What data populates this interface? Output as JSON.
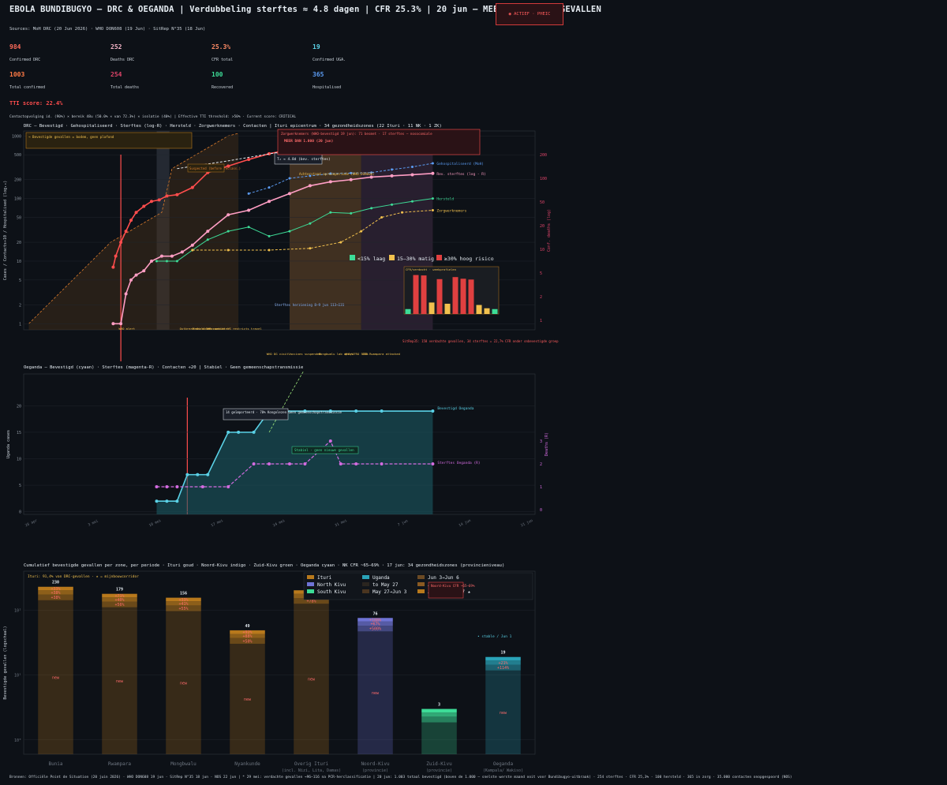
{
  "header": {
    "title": "EBOLA BUNDIBUGYO — DRC & OEGANDA  |  Verdubbeling sterftes ≈ 4.8 dagen  |  CFR 25.3%  |  20 jun — MEER DAN 1.000 GEVALLEN",
    "badge": "◉ ACTIEF · PHEIC",
    "sources": "Sources: MoH DRC (20 Jun 2026)  ·  WHO DON608 (19 Jun)  ·  SitRep N°35 (18 Jun)"
  },
  "kpis": [
    {
      "value": "984",
      "label": "Confirmed DRC",
      "color": "#ff6b5a"
    },
    {
      "value": "252",
      "label": "Deaths DRC",
      "color": "#f5b5c8"
    },
    {
      "value": "25.3%",
      "label": "CFR total",
      "color": "#ff8c66"
    },
    {
      "value": "19",
      "label": "Confirmed UGA.",
      "color": "#5ad1e6"
    },
    {
      "value": "1003",
      "label": "Total confirmed",
      "color": "#ff7a45"
    },
    {
      "value": "254",
      "label": "Total deaths",
      "color": "#e0446a"
    },
    {
      "value": "100",
      "label": "Recovered",
      "color": "#3ddc97"
    },
    {
      "value": "365",
      "label": "Hospitalised",
      "color": "#5b9bf2"
    }
  ],
  "tti": "TTI score: 22.4%",
  "contact_line": "Contactopvolging id. (90%) × bereik 48u (50.0% × van 72.3%) × isolatie (40%)  |  Effective TTI threshold: >50%  ·  Current score: CRITICAL",
  "panels": {
    "drc_head": "DRC — Bevestigd · Gehospitaliseerd · Sterftes (log-R) · Hersteld · Zorgwerknemers · Contacten  |  Ituri epicentrum · 34 gezondheidszones (22 Ituri · 11 NK · 1 ZK)",
    "uganda_head": "Oeganda — Bevestigd (cyaan) · Sterftes (magenta-R) · Contacten ÷20  |  Stabiel · Geen gemeenschapstransmissie",
    "zone_head": "Cumulatief bevestigde gevallen per zone, per periode  ·  Ituri goud · Noord-Kivu indigo · Zuid-Kivu groen · Oeganda cyaan  ·  NK CFR ~65–69%  ·  17 jun: 34 gezondheidszones (provincieniveau)"
  },
  "chart_data": [
    {
      "type": "line",
      "id": "drc",
      "ylabel": "Cases / Contacts÷10 / Hospitalised (log₁₀)",
      "y2label": "Conf. deaths (log)",
      "yscale": "log",
      "ylim": [
        0.8,
        1200
      ],
      "y_ticks": [
        1,
        2,
        5,
        10,
        20,
        50,
        100,
        200,
        500,
        1000
      ],
      "y2_ticks": [
        "1",
        "2",
        "5",
        "10",
        "20",
        "50",
        "100",
        "200"
      ],
      "series": [
        {
          "name": "Bevestigd",
          "color": "#ff4d4d",
          "values": [
            [
              0.175,
              8
            ],
            [
              0.18,
              12
            ],
            [
              0.19,
              20
            ],
            [
              0.2,
              30
            ],
            [
              0.21,
              45
            ],
            [
              0.22,
              60
            ],
            [
              0.235,
              75
            ],
            [
              0.25,
              90
            ],
            [
              0.265,
              95
            ],
            [
              0.28,
              110
            ],
            [
              0.3,
              115
            ],
            [
              0.33,
              150
            ],
            [
              0.36,
              260
            ],
            [
              0.4,
              330
            ],
            [
              0.44,
              420
            ],
            [
              0.48,
              520
            ],
            [
              0.52,
              600
            ],
            [
              0.56,
              700
            ],
            [
              0.6,
              760
            ],
            [
              0.64,
              800
            ],
            [
              0.68,
              850
            ],
            [
              0.72,
              900
            ],
            [
              0.76,
              950
            ],
            [
              0.8,
              984
            ]
          ]
        },
        {
          "name": "Rev. sterftes (log - R)",
          "color": "#ff9ec4",
          "values": [
            [
              0.175,
              1
            ],
            [
              0.19,
              1
            ],
            [
              0.2,
              3
            ],
            [
              0.21,
              5
            ],
            [
              0.22,
              6
            ],
            [
              0.235,
              7
            ],
            [
              0.25,
              10
            ],
            [
              0.27,
              12
            ],
            [
              0.29,
              12
            ],
            [
              0.31,
              14
            ],
            [
              0.33,
              18
            ],
            [
              0.36,
              30
            ],
            [
              0.4,
              55
            ],
            [
              0.44,
              65
            ],
            [
              0.48,
              90
            ],
            [
              0.52,
              120
            ],
            [
              0.56,
              160
            ],
            [
              0.6,
              185
            ],
            [
              0.64,
              200
            ],
            [
              0.68,
              220
            ],
            [
              0.72,
              230
            ],
            [
              0.76,
              240
            ],
            [
              0.8,
              252
            ]
          ]
        },
        {
          "name": "Gehospitaliseerd (MoH)",
          "color": "#5b9bf2",
          "values": [
            [
              0.44,
              120
            ],
            [
              0.48,
              150
            ],
            [
              0.52,
              210
            ],
            [
              0.56,
              230
            ],
            [
              0.6,
              250
            ],
            [
              0.64,
              255
            ],
            [
              0.68,
              260
            ],
            [
              0.72,
              290
            ],
            [
              0.76,
              320
            ],
            [
              0.8,
              365
            ]
          ]
        },
        {
          "name": "Hersteld",
          "color": "#3ddc97",
          "values": [
            [
              0.26,
              10
            ],
            [
              0.28,
              10
            ],
            [
              0.3,
              10
            ],
            [
              0.33,
              15
            ],
            [
              0.36,
              22
            ],
            [
              0.4,
              30
            ],
            [
              0.44,
              35
            ],
            [
              0.48,
              25
            ],
            [
              0.52,
              30
            ],
            [
              0.56,
              40
            ],
            [
              0.6,
              60
            ],
            [
              0.64,
              58
            ],
            [
              0.68,
              70
            ],
            [
              0.72,
              80
            ],
            [
              0.76,
              90
            ],
            [
              0.8,
              100
            ]
          ]
        },
        {
          "name": "Zorgwerknemers",
          "color": "#f2c14e",
          "values": [
            [
              0.33,
              15
            ],
            [
              0.4,
              15
            ],
            [
              0.48,
              15
            ],
            [
              0.56,
              16
            ],
            [
              0.62,
              20
            ],
            [
              0.66,
              30
            ],
            [
              0.7,
              50
            ],
            [
              0.74,
              60
            ],
            [
              0.8,
              65
            ]
          ]
        },
        {
          "name": "Contacten ÷10",
          "color": "#e6edf3",
          "values": [
            [
              0.3,
              300
            ],
            [
              0.4,
              400
            ],
            [
              0.5,
              550
            ],
            [
              0.6,
              650
            ],
            [
              0.7,
              800
            ],
            [
              0.8,
              900
            ]
          ]
        }
      ],
      "annotations": [
        "→ Bevestigde gevallen = bodem, geen plafond",
        "T₂ ≈ 4.8d (bev. sterftes)",
        "Zorgwerknemers (WHO-bevestigd 19 jun): 71 besmet · 17 sterftes — nosocomiale",
        "MEER DAN 1.000 (20 jun)",
        "Achterstand opruimperiode (WHO DON608)",
        "Sterftes herziening 8–9 jun 113→131",
        "SitRep35: 158 verdachte gevallen, 34 sterftes = 22,7% CFR onder onbevestigde groep",
        "Suspected (before reclass.)"
      ],
      "legend": [
        {
          "label": "<15% laag",
          "color": "#3ddc97"
        },
        {
          "label": "15–30% matig",
          "color": "#f2c14e"
        },
        {
          "label": "≥30% hoog risico",
          "color": "#e04040"
        }
      ],
      "event_labels": [
        "WHO alert",
        "Outbreak declared",
        "Medical evacuation",
        "IHR committee",
        "US restricts travel",
        "WHO DG visit",
        "Vaccines suspended",
        "Mongbwalu lab opens",
        "WHO/AFRO 500k",
        "CTE Rwampara attacked"
      ],
      "inset": {
        "title": "CFR/verdacht · weekprofielen",
        "values": [
          12,
          95,
          94,
          28,
          85,
          25,
          90,
          86,
          84,
          22,
          14,
          12
        ],
        "colors": [
          "#3ddc97",
          "#e04040",
          "#e04040",
          "#f2c14e",
          "#e04040",
          "#f2c14e",
          "#e04040",
          "#e04040",
          "#e04040",
          "#f2c14e",
          "#f2c14e",
          "#3ddc97"
        ]
      }
    },
    {
      "type": "line",
      "id": "uganda",
      "ylabel": "Uganda cases",
      "y2label": "Deaths (R)",
      "ylim": [
        -0.5,
        26
      ],
      "y_ticks": [
        0,
        5,
        10,
        15,
        20
      ],
      "y2_ticks": [
        0,
        1,
        2,
        3
      ],
      "x_ticks": [
        "26 apr",
        "3 mei",
        "10 mei",
        "17 mei",
        "24 mei",
        "31 mei",
        "7 jun",
        "14 jun",
        "21 jun"
      ],
      "series": [
        {
          "name": "Bevestigd Oeganda",
          "color": "#5ad1e6",
          "values": [
            [
              0.26,
              2
            ],
            [
              0.28,
              2
            ],
            [
              0.3,
              2
            ],
            [
              0.32,
              7
            ],
            [
              0.34,
              7
            ],
            [
              0.36,
              7
            ],
            [
              0.4,
              15
            ],
            [
              0.42,
              15
            ],
            [
              0.45,
              15
            ],
            [
              0.48,
              19
            ],
            [
              0.5,
              19
            ],
            [
              0.55,
              19
            ],
            [
              0.6,
              19
            ],
            [
              0.65,
              19
            ],
            [
              0.7,
              19
            ],
            [
              0.8,
              19
            ]
          ]
        },
        {
          "name": "Sterftes Oeganda (R)",
          "color": "#d36be0",
          "values": [
            [
              0.26,
              1
            ],
            [
              0.28,
              1
            ],
            [
              0.3,
              1
            ],
            [
              0.35,
              1
            ],
            [
              0.4,
              1
            ],
            [
              0.45,
              2
            ],
            [
              0.48,
              2
            ],
            [
              0.52,
              2
            ],
            [
              0.55,
              2
            ],
            [
              0.6,
              3
            ],
            [
              0.62,
              2
            ],
            [
              0.65,
              2
            ],
            [
              0.7,
              2
            ],
            [
              0.8,
              2
            ]
          ]
        }
      ],
      "annotations": [
        "14 geïmporteerd · 70% Kongolezen Geen gemeenschapstransmissie",
        "Stabiel · geen nieuwe gevallen"
      ]
    },
    {
      "type": "bar",
      "id": "zones",
      "ylabel": "Bevestigde gevallen (logschaal)",
      "yscale": "log",
      "categories": [
        "Bunia",
        "Rwampara",
        "Mongbwalu",
        "Nyankunde",
        "Overig Ituri (incl. Nizi, Lita, Damas)",
        "Noord-Kivu (provincie)",
        "Zuid-Kivu (provincie)",
        "Oeganda (Kampala/ Wakiso)"
      ],
      "totals": [
        230,
        179,
        156,
        49,
        203,
        76,
        3,
        19
      ],
      "colors": [
        "#b8791c",
        "#b8791c",
        "#b8791c",
        "#b8791c",
        "#b8791c",
        "#6f74d6",
        "#3ddc97",
        "#2aa3b8"
      ],
      "segment_labels": [
        [
          "new",
          "+38%",
          "+38%",
          "+33%"
        ],
        [
          "new",
          "+56%",
          "+40%",
          "+71%"
        ],
        [
          "new",
          "+55%",
          "+41%",
          "+33%"
        ],
        [
          "new",
          "+50%",
          "+88%",
          "+92%"
        ],
        [
          "new",
          "+78%",
          "+64%",
          "+40%"
        ],
        [
          "new",
          "+500%",
          "+67%",
          "+188%"
        ],
        [
          "",
          "",
          "",
          ""
        ],
        [
          "new",
          "+114%",
          "+21%",
          ""
        ]
      ],
      "legend": [
        "Ituri",
        "North Kivu",
        "South Kivu",
        "Uganda",
        "to May 27",
        "May 27→Jun 3",
        "Jun 3→Jun 6",
        "Jun 6→Jun 14",
        "Jun 14→Jun 17 ★"
      ],
      "annotations": [
        "Ituri: 91,4% van DRC-gevallen   ·  ★ = mijnbouwcorridor",
        "Noord-Kivu CFR ~65–69%",
        "• stable / Jun 1"
      ]
    }
  ],
  "footer": "Bronnen: Officiële Point de Situation (20 juin 2026) · WHO DON608 19 jun · SitRep N°35 18 jun · NOS 22 jun  |  * 29 mei: verdachte gevallen →96–116 na PCR-herclassificatie  |  20 jun: 1.003 totaal bevestigd (boven de 1.000 — snelste werste maand ooit voor Bundibugyo-uitbraak) · 254 sterftes · CFR 25,3% · 100 hersteld · 365 in zorg · 35.000 contacten onopgespoord (NOS)"
}
